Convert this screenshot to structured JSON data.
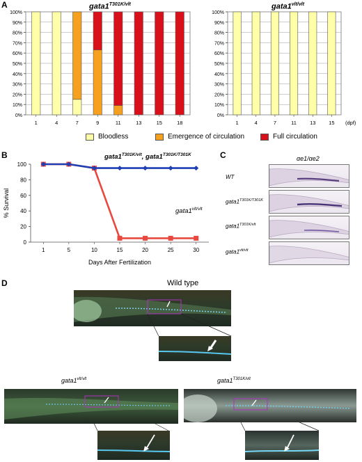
{
  "panels": {
    "a": "A",
    "b": "B",
    "c": "C",
    "d": "D"
  },
  "chart_data": [
    {
      "type": "bar",
      "stacked": true,
      "title_main": "gata1",
      "title_sup": "T301K/vlt",
      "categories": [
        "1",
        "4",
        "7",
        "9",
        "11",
        "13",
        "15",
        "18"
      ],
      "series": [
        {
          "name": "Bloodless",
          "color": "#ffffa8",
          "values": [
            100,
            100,
            15,
            0,
            0,
            0,
            0,
            0
          ]
        },
        {
          "name": "Emergence of circulation",
          "color": "#f5a01e",
          "values": [
            0,
            0,
            85,
            63,
            9,
            0,
            0,
            0
          ]
        },
        {
          "name": "Full circulation",
          "color": "#d90f1a",
          "values": [
            0,
            0,
            0,
            37,
            91,
            100,
            100,
            100
          ]
        }
      ],
      "ylim": [
        0,
        100
      ],
      "yticks": [
        "0%",
        "10%",
        "20%",
        "30%",
        "40%",
        "50%",
        "60%",
        "70%",
        "80%",
        "90%",
        "100%"
      ]
    },
    {
      "type": "bar",
      "stacked": true,
      "title_main": "gata1",
      "title_sup": "vlt/vlt",
      "categories": [
        "1",
        "4",
        "7",
        "11",
        "13",
        "15"
      ],
      "xunit": "(dpf)",
      "series": [
        {
          "name": "Bloodless",
          "color": "#ffffa8",
          "values": [
            100,
            100,
            100,
            100,
            100,
            100
          ]
        }
      ],
      "ylim": [
        0,
        100
      ],
      "yticks": [
        "0%",
        "10%",
        "20%",
        "30%",
        "40%",
        "50%",
        "60%",
        "70%",
        "80%",
        "90%",
        "100%"
      ]
    },
    {
      "type": "line",
      "x": [
        "1",
        "5",
        "10",
        "15",
        "20",
        "25",
        "30"
      ],
      "yticks": [
        "0",
        "20",
        "40",
        "60",
        "80",
        "100"
      ],
      "ylim": [
        0,
        100
      ],
      "ylabel": "% Survival",
      "xlabel": "Days After Fertilization",
      "series": [
        {
          "label_main": "gata1",
          "label_sup": "T301K/vlt",
          "label_join": ", gata1",
          "label_sup2": "T301K/T301K",
          "color": "#1f3fb5",
          "marker": "diamond",
          "values": [
            100,
            100,
            95,
            95,
            95,
            95,
            95
          ]
        },
        {
          "label_main": "gata1",
          "label_sup": "vlt/vlt",
          "color": "#e8483d",
          "marker": "square",
          "values": [
            100,
            100,
            95,
            5,
            5,
            5,
            5
          ]
        }
      ]
    }
  ],
  "legend": {
    "items": [
      {
        "label": "Bloodless",
        "color": "#ffffa8"
      },
      {
        "label": "Emergence of circulation",
        "color": "#f5a01e"
      },
      {
        "label": "Full circulation",
        "color": "#d90f1a"
      }
    ]
  },
  "panel_c": {
    "title": "αe1/αe2",
    "rows": [
      {
        "main": "WT",
        "sup": ""
      },
      {
        "main": "gata1",
        "sup": "T301K/T301K"
      },
      {
        "main": "gata1",
        "sup": "T301K/vlt"
      },
      {
        "main": "gata1",
        "sup": "vlt/vlt"
      }
    ]
  },
  "panel_d": {
    "wild_type": "Wild type",
    "left": {
      "main": "gata1",
      "sup": "vlt/vlt"
    },
    "right": {
      "main": "gata1",
      "sup": "T301K/vlt"
    }
  }
}
